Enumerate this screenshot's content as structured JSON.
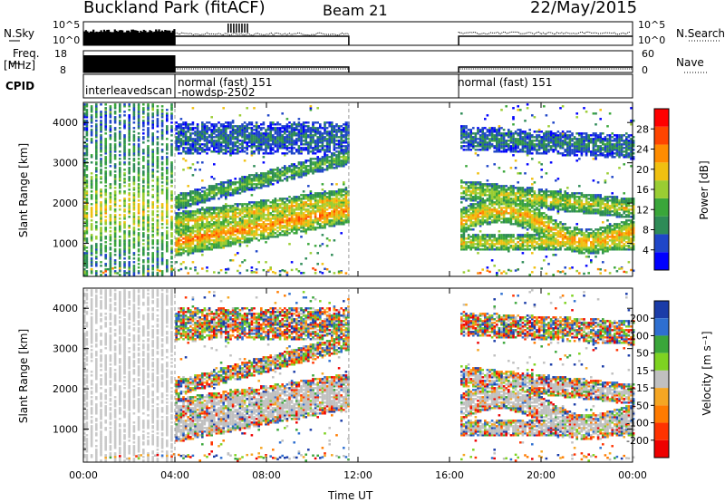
{
  "header": {
    "title": "Buckland Park (fitACF)",
    "beam": "Beam 21",
    "date": "22/May/2015"
  },
  "side_labels": {
    "nsky": "N.Sky",
    "nsearch": "N.Search",
    "freq_line1": "Freq.",
    "freq_line2": "[MHz]",
    "nave": "Nave",
    "cpid": "CPID"
  },
  "cpid_segments": [
    "interleavedscan",
    "normal (fast) 151",
    "-nowdsp-2502",
    "normal (fast) 151"
  ],
  "chart_data": [
    {
      "type": "line",
      "panel": "noise",
      "left_ticks": [
        "10^5",
        "10^0"
      ],
      "right_ticks": [
        "10^5",
        "10^0"
      ],
      "note": "log scale, sky noise (solid) and search noise (dotted)",
      "x_range_hours": [
        0,
        24
      ],
      "coverage_hours": [
        [
          0,
          4
        ],
        [
          4,
          11.6
        ],
        [
          16.4,
          24
        ]
      ]
    },
    {
      "type": "line",
      "panel": "frequency",
      "left_ticks": [
        "18",
        "8"
      ],
      "right_ticks": [
        "60",
        "0"
      ],
      "ylim_left": [
        8,
        18
      ],
      "ylim_right": [
        0,
        60
      ],
      "coverage_hours": [
        [
          0,
          4
        ],
        [
          4,
          11.6
        ],
        [
          16.4,
          24
        ]
      ]
    },
    {
      "type": "heatmap",
      "panel": "power",
      "ylabel": "Slant Range [km]",
      "ylim": [
        180,
        4500
      ],
      "yticks": [
        "4000",
        "3000",
        "2000",
        "1000"
      ],
      "ytick_values": [
        4000,
        3000,
        2000,
        1000
      ],
      "colorbar_label": "Power [dB]",
      "colorbar_ticks": [
        "28",
        "24",
        "20",
        "16",
        "12",
        "8",
        "4"
      ],
      "colorbar_values": [
        28,
        24,
        20,
        16,
        12,
        8,
        4
      ],
      "colorbar_range": [
        0,
        32
      ],
      "colorbar_colors": [
        "#0000ff",
        "#1f46c8",
        "#2e8b57",
        "#3aa63a",
        "#9acd32",
        "#f0c010",
        "#ff8c00",
        "#ff4500",
        "#ff0000"
      ]
    },
    {
      "type": "heatmap",
      "panel": "velocity",
      "ylabel": "Slant Range [km]",
      "ylim": [
        180,
        4500
      ],
      "yticks": [
        "4000",
        "3000",
        "2000",
        "1000"
      ],
      "ytick_values": [
        4000,
        3000,
        2000,
        1000
      ],
      "colorbar_label": "Velocity [m s⁻¹]",
      "colorbar_ticks": [
        "200",
        "100",
        "50",
        "15",
        "-15",
        "-50",
        "-100",
        "-200"
      ],
      "colorbar_colors": [
        "#1a3ca8",
        "#2e6fd0",
        "#3aa63a",
        "#7ed321",
        "#c0c0c0",
        "#f5a623",
        "#ff7b00",
        "#ff3300",
        "#ee0000"
      ]
    }
  ],
  "x_axis": {
    "label": "Time UT",
    "ticks": [
      "00:00",
      "04:00",
      "08:00",
      "12:00",
      "16:00",
      "20:00",
      "00:00"
    ],
    "tick_hours": [
      0,
      4,
      8,
      12,
      16,
      20,
      24
    ]
  }
}
